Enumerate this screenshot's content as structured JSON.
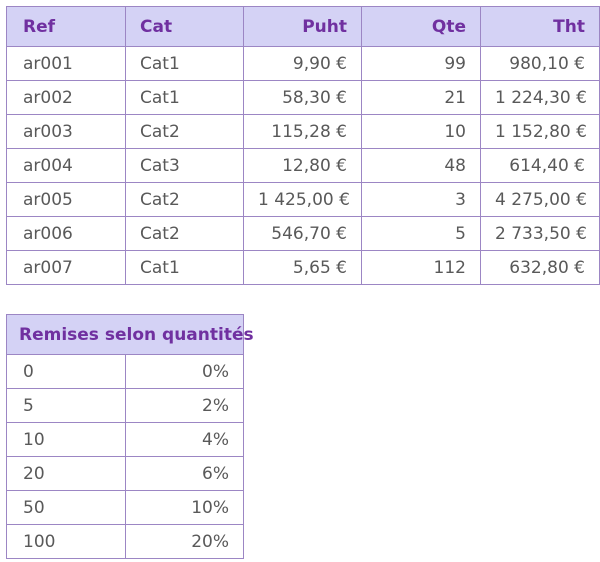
{
  "main_table": {
    "headers": [
      "Ref",
      "Cat",
      "Puht",
      "Qte",
      "Tht"
    ],
    "rows": [
      [
        "ar001",
        "Cat1",
        "9,90 €",
        "99",
        "980,10 €"
      ],
      [
        "ar002",
        "Cat1",
        "58,30 €",
        "21",
        "1 224,30 €"
      ],
      [
        "ar003",
        "Cat2",
        "115,28 €",
        "10",
        "1 152,80 €"
      ],
      [
        "ar004",
        "Cat3",
        "12,80 €",
        "48",
        "614,40 €"
      ],
      [
        "ar005",
        "Cat2",
        "1 425,00 €",
        "3",
        "4 275,00 €"
      ],
      [
        "ar006",
        "Cat2",
        "546,70 €",
        "5",
        "2 733,50 €"
      ],
      [
        "ar007",
        "Cat1",
        "5,65 €",
        "112",
        "632,80 €"
      ]
    ]
  },
  "discount_table": {
    "title": "Remises selon quantités",
    "rows": [
      [
        "0",
        "0%"
      ],
      [
        "5",
        "2%"
      ],
      [
        "10",
        "4%"
      ],
      [
        "20",
        "6%"
      ],
      [
        "50",
        "10%"
      ],
      [
        "100",
        "20%"
      ]
    ]
  },
  "colors": {
    "header_background": "#d4d2f5",
    "header_text": "#7030a0",
    "border": "#9c86c4",
    "body_text": "#595959"
  }
}
